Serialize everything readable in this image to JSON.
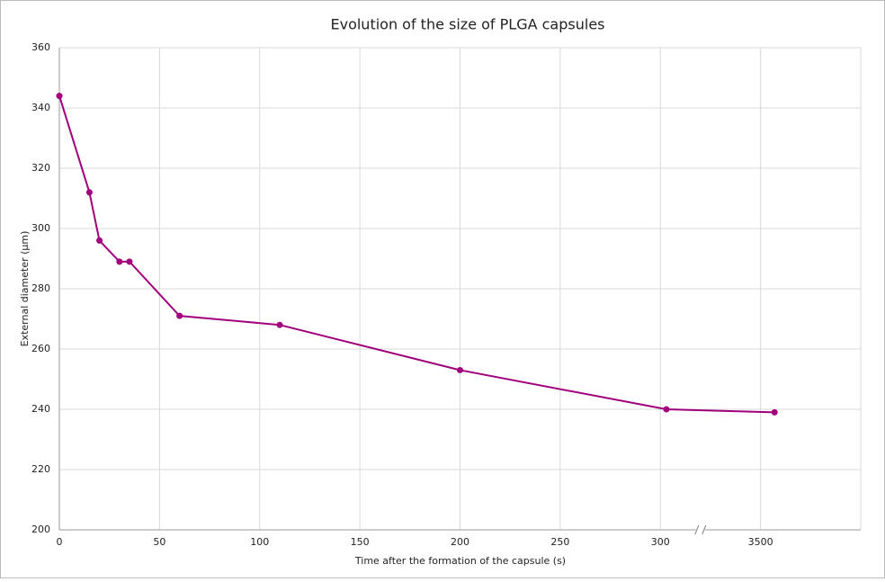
{
  "chart_data": {
    "type": "line",
    "title": "Evolution of the size of PLGA capsules",
    "x_label": "Time after the formation of the capsule (s)",
    "y_label": "External diameter (µm)",
    "series": [
      {
        "color": "#a0007c",
        "x": [
          0,
          15,
          20,
          30,
          35,
          60,
          110,
          200,
          303,
          3507
        ],
        "values": [
          344,
          312,
          296,
          289,
          289,
          271,
          268,
          253,
          240,
          239
        ]
      }
    ],
    "xlim": [
      0,
      3550
    ],
    "xticks": [
      0,
      50,
      100,
      150,
      200,
      250,
      300,
      3500
    ],
    "axis_break": [
      320,
      3470
    ],
    "ylim": [
      200,
      360
    ],
    "yticks": [
      200,
      220,
      240,
      260,
      280,
      300,
      320,
      340,
      360
    ],
    "grid": true
  }
}
